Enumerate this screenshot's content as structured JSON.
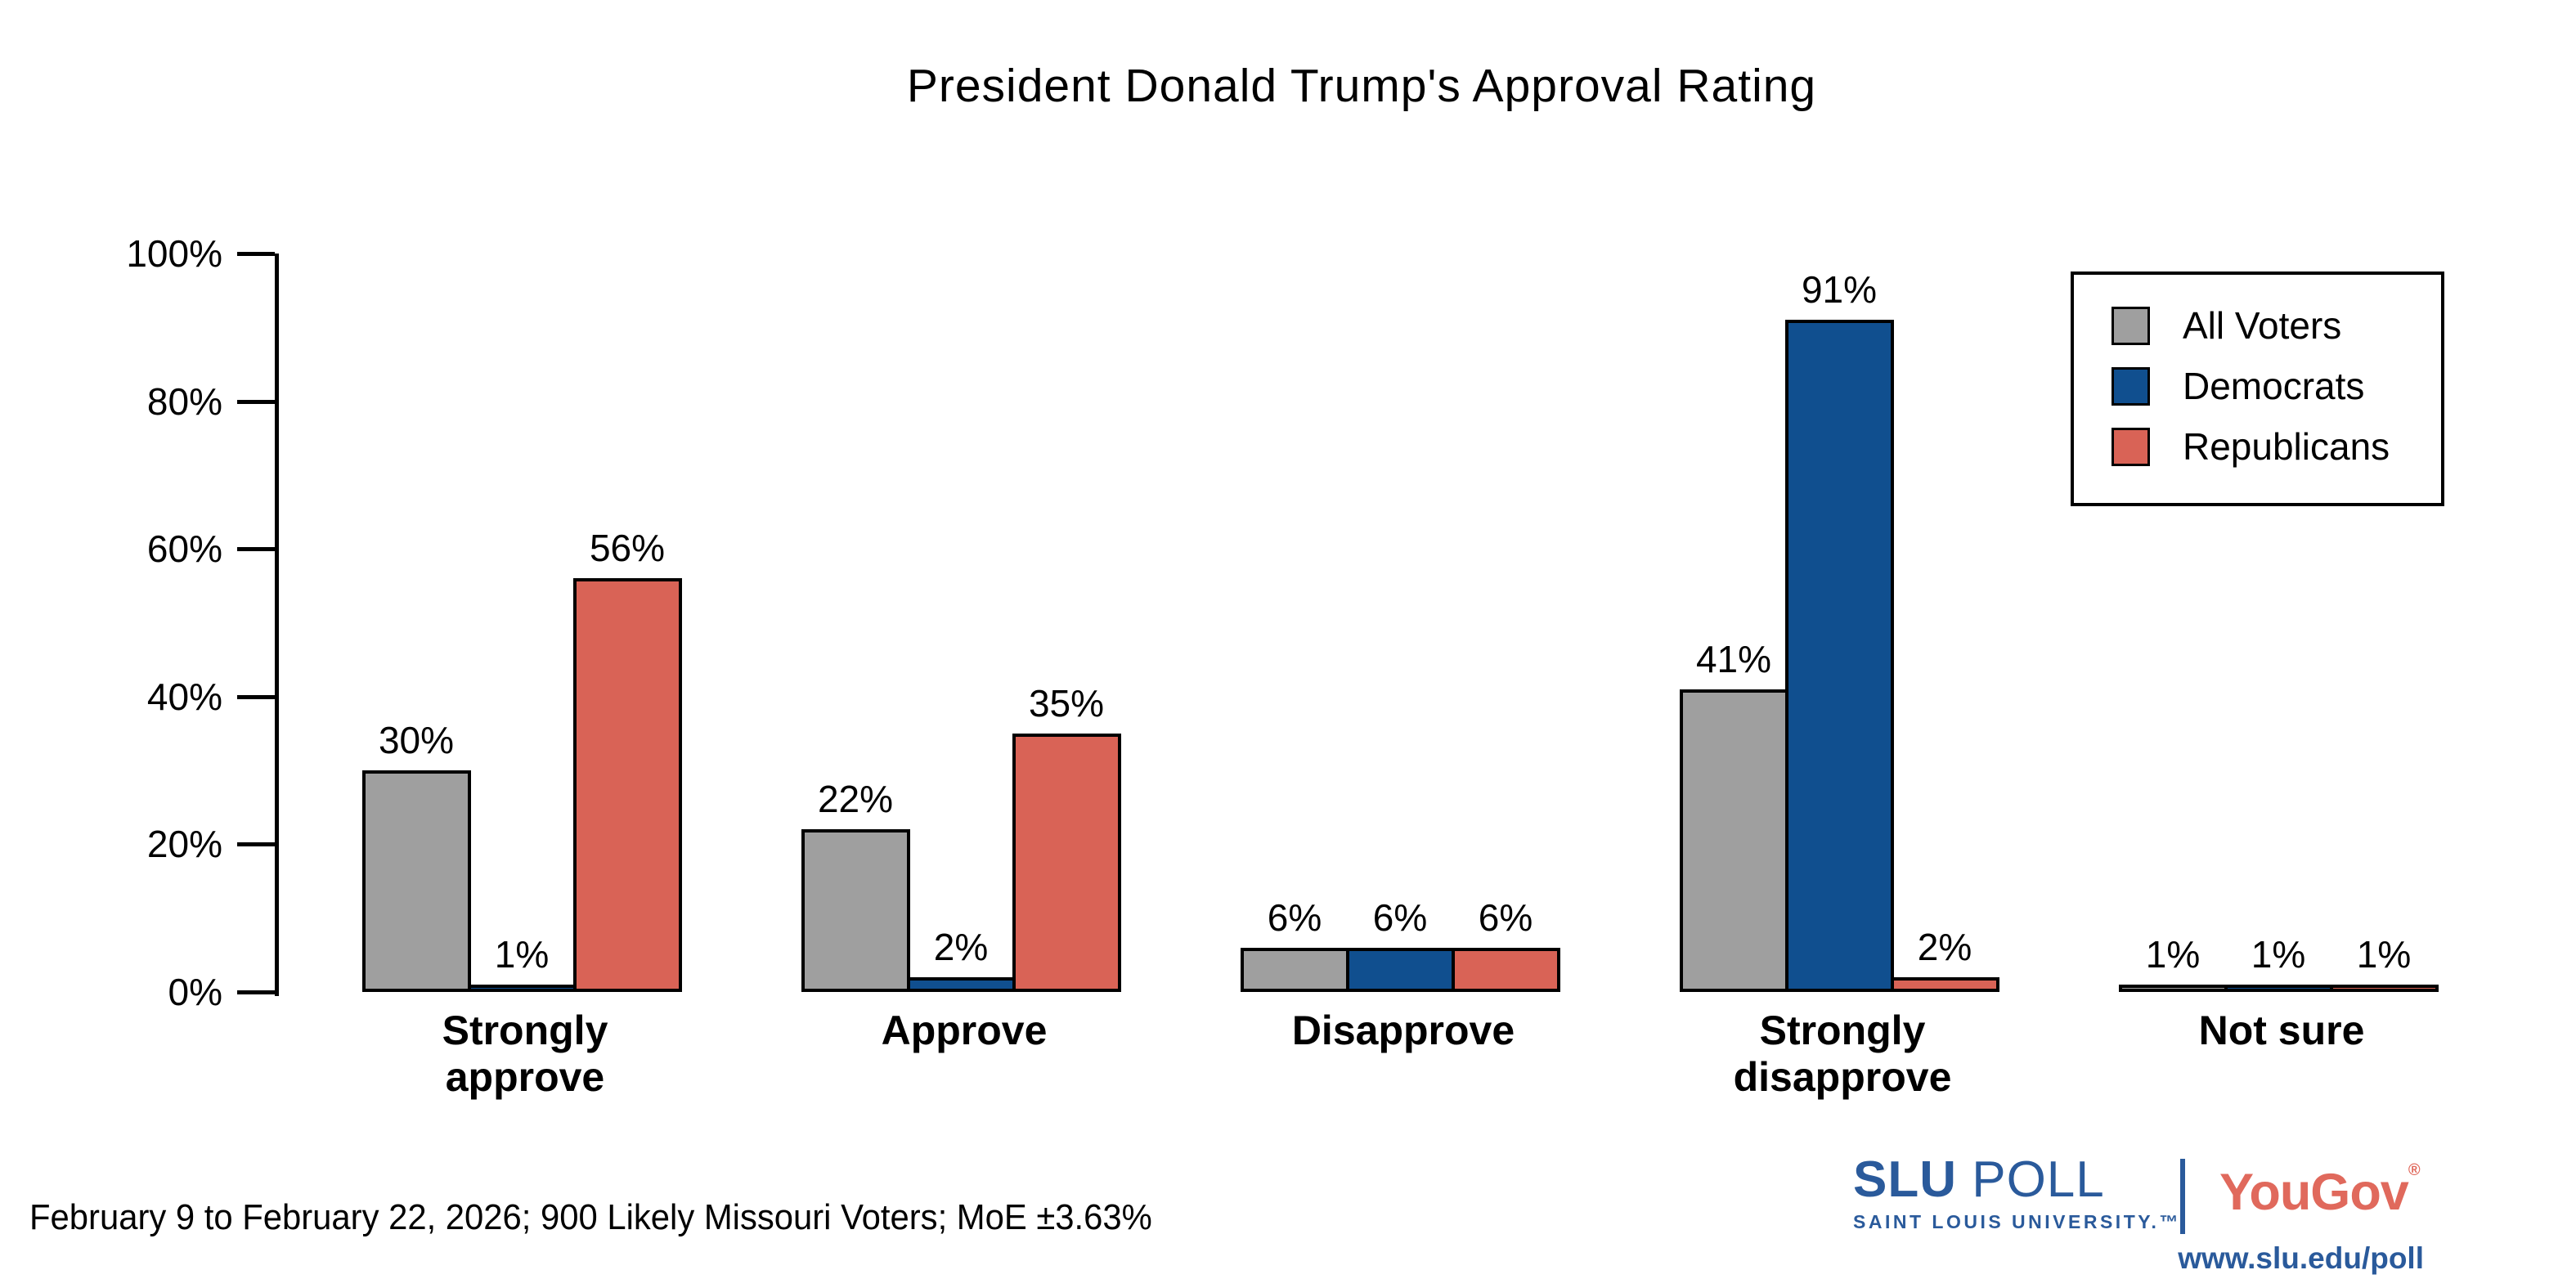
{
  "title": "President Donald Trump's Approval Rating",
  "footer": {
    "note": "February 9 to February 22, 2026; 900 Likely Missouri Voters; MoE ±3.63%"
  },
  "branding": {
    "slu_wordmark_bold": "SLU",
    "slu_wordmark_rest": " POLL",
    "slu_subtitle": "SAINT LOUIS UNIVERSITY.™",
    "partner_wordmark": "YouGov",
    "partner_registered": "®",
    "website": "www.slu.edu/poll",
    "slu_blue": "#2A5A9B",
    "yougov_coral": "#E0695C"
  },
  "chart_data": {
    "type": "bar",
    "title": "President Donald Trump's Approval Rating",
    "categories": [
      "Strongly approve",
      "Approve",
      "Disapprove",
      "Strongly disapprove",
      "Not sure"
    ],
    "series": [
      {
        "name": "All Voters",
        "color": "#9F9F9F",
        "values": [
          30,
          22,
          6,
          41,
          1
        ]
      },
      {
        "name": "Democrats",
        "color": "#104F8F",
        "values": [
          1,
          2,
          6,
          91,
          1
        ]
      },
      {
        "name": "Republicans",
        "color": "#D96356",
        "values": [
          56,
          35,
          6,
          2,
          1
        ]
      }
    ],
    "value_label_suffix": "%",
    "ylim": [
      0,
      100
    ],
    "yticks": [
      0,
      20,
      40,
      60,
      80,
      100
    ],
    "ytick_suffix": "%",
    "grid": false,
    "legend_position": "top-right",
    "bar_outline_color": "#000000",
    "xlabel": "",
    "ylabel": ""
  }
}
